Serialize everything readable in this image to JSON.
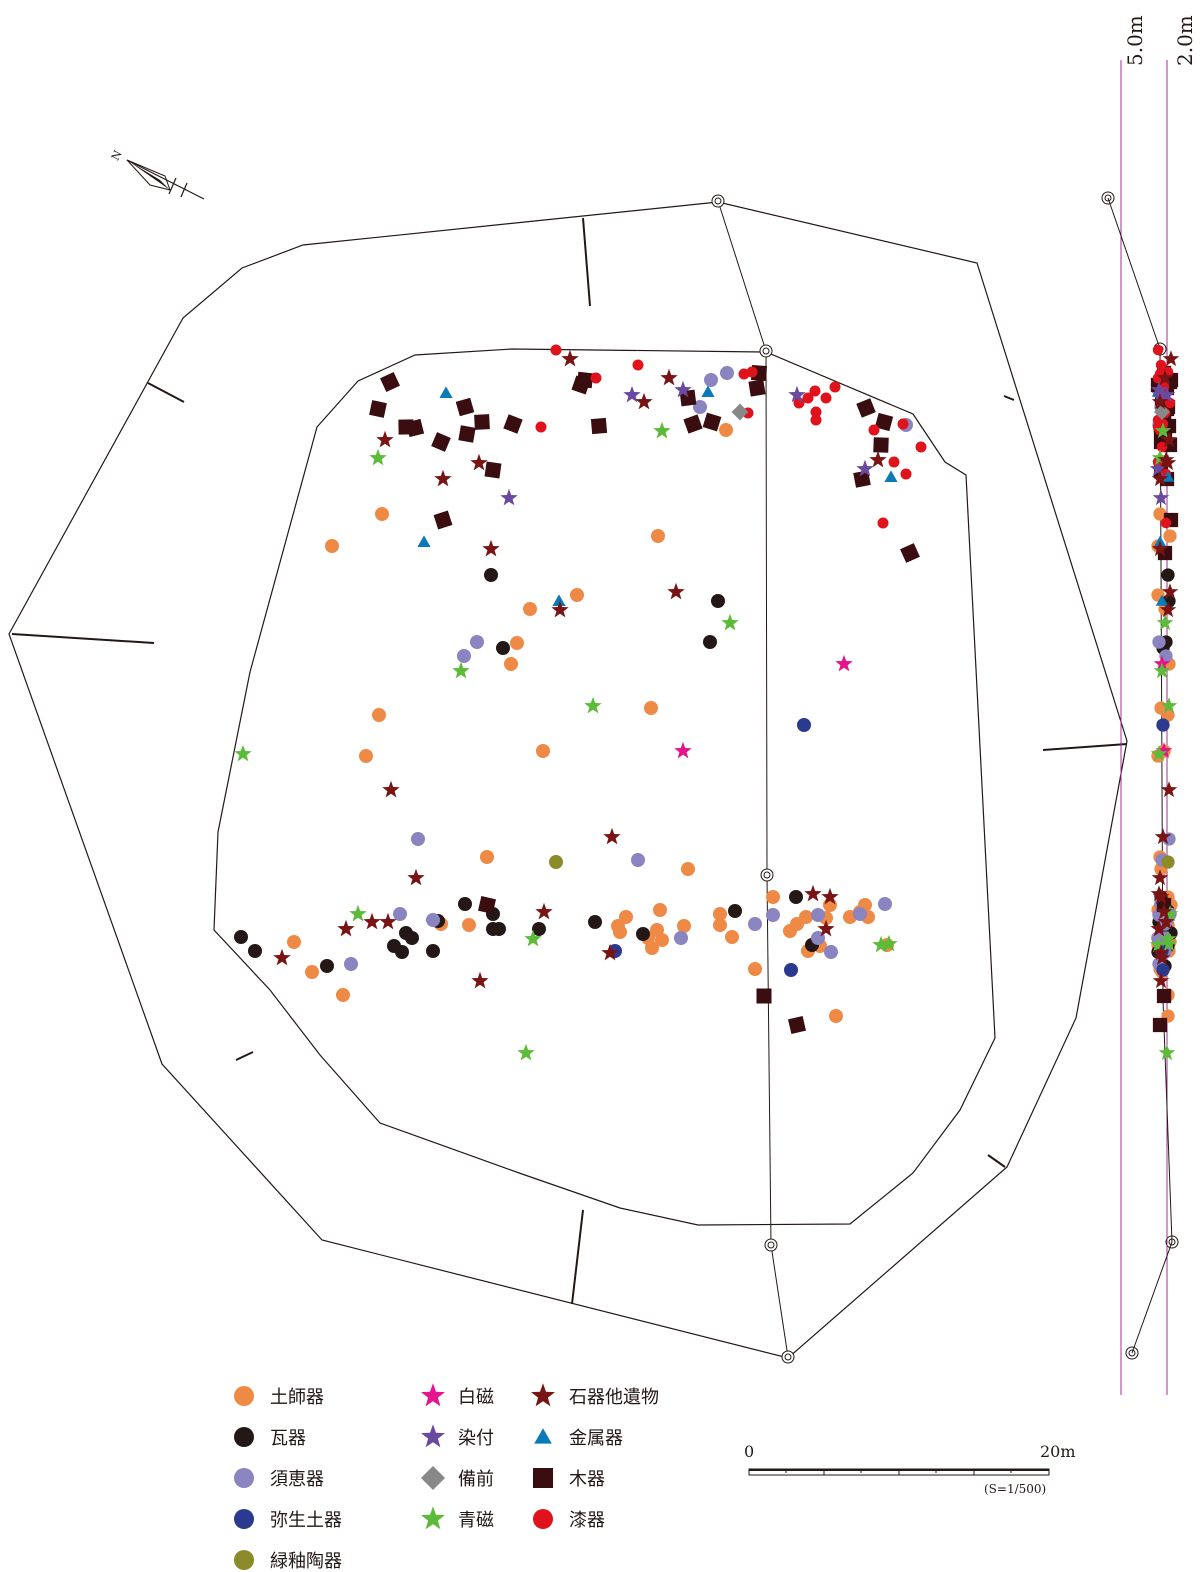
{
  "chart_data": {
    "type": "scatter",
    "legend": [
      {
        "key": "haji",
        "label": "土師器",
        "shape": "circle",
        "color": "#ee8a45"
      },
      {
        "key": "kawara",
        "label": "瓦器",
        "shape": "circle",
        "color": "#231815"
      },
      {
        "key": "sue",
        "label": "須恵器",
        "shape": "circle",
        "color": "#8a84c0"
      },
      {
        "key": "yayoi",
        "label": "弥生土器",
        "shape": "circle",
        "color": "#2b3a8f"
      },
      {
        "key": "ryokuyu",
        "label": "緑釉陶器",
        "shape": "circle",
        "color": "#8b8b2a"
      },
      {
        "key": "hakuji",
        "label": "白磁",
        "shape": "star",
        "color": "#e4148c"
      },
      {
        "key": "sometsuke",
        "label": "染付",
        "shape": "star",
        "color": "#6a4a9f"
      },
      {
        "key": "bizen",
        "label": "備前",
        "shape": "diamond",
        "color": "#888888"
      },
      {
        "key": "seiji",
        "label": "青磁",
        "shape": "star",
        "color": "#5dbb3a"
      },
      {
        "key": "sekki",
        "label": "石器他遺物",
        "shape": "star",
        "color": "#7a1414"
      },
      {
        "key": "kinzoku",
        "label": "金属器",
        "shape": "triangle",
        "color": "#0a7ab8"
      },
      {
        "key": "mokki",
        "label": "木器",
        "shape": "square",
        "color": "#3a0e10"
      },
      {
        "key": "shikki",
        "label": "漆器",
        "shape": "circle",
        "color": "#e0121c"
      }
    ],
    "scale": {
      "start_label": "0",
      "end_label": "20m",
      "ratio_label": "(S=1/500)"
    },
    "section_labels": [
      "5.0m",
      "2.0m"
    ],
    "north_label": "N",
    "points": {
      "haji": [
        [
          332,
          546
        ],
        [
          382,
          514
        ],
        [
          658,
          536
        ],
        [
          577,
          595
        ],
        [
          530,
          609
        ],
        [
          517,
          643
        ],
        [
          511,
          664
        ],
        [
          379,
          715
        ],
        [
          366,
          756
        ],
        [
          543,
          751
        ],
        [
          651,
          708
        ],
        [
          487,
          857
        ],
        [
          688,
          869
        ],
        [
          294,
          942
        ],
        [
          312,
          972
        ],
        [
          343,
          995
        ],
        [
          441,
          924
        ],
        [
          469,
          925
        ],
        [
          618,
          926
        ],
        [
          626,
          917
        ],
        [
          620,
          932
        ],
        [
          648,
          938
        ],
        [
          652,
          948
        ],
        [
          657,
          930
        ],
        [
          662,
          940
        ],
        [
          660,
          910
        ],
        [
          684,
          926
        ],
        [
          720,
          914
        ],
        [
          720,
          925
        ],
        [
          732,
          937
        ],
        [
          773,
          897
        ],
        [
          790,
          931
        ],
        [
          797,
          924
        ],
        [
          808,
          951
        ],
        [
          806,
          917
        ],
        [
          820,
          946
        ],
        [
          826,
          918
        ],
        [
          830,
          905
        ],
        [
          850,
          917
        ],
        [
          860,
          912
        ],
        [
          868,
          917
        ],
        [
          865,
          905
        ],
        [
          887,
          945
        ],
        [
          755,
          969
        ],
        [
          836,
          1016
        ],
        [
          726,
          430
        ]
      ],
      "kawara": [
        [
          241,
          937
        ],
        [
          255,
          951
        ],
        [
          491,
          575
        ],
        [
          503,
          648
        ],
        [
          718,
          601
        ],
        [
          710,
          642
        ],
        [
          327,
          966
        ],
        [
          394,
          946
        ],
        [
          402,
          952
        ],
        [
          406,
          933
        ],
        [
          412,
          938
        ],
        [
          433,
          951
        ],
        [
          438,
          921
        ],
        [
          465,
          904
        ],
        [
          493,
          914
        ],
        [
          493,
          929
        ],
        [
          499,
          929
        ],
        [
          539,
          929
        ],
        [
          595,
          922
        ],
        [
          643,
          934
        ],
        [
          735,
          911
        ],
        [
          796,
          897
        ],
        [
          812,
          945
        ]
      ],
      "sue": [
        [
          464,
          656
        ],
        [
          477,
          642
        ],
        [
          418,
          839
        ],
        [
          638,
          860
        ],
        [
          351,
          964
        ],
        [
          400,
          914
        ],
        [
          433,
          920
        ],
        [
          681,
          938
        ],
        [
          755,
          924
        ],
        [
          773,
          915
        ],
        [
          818,
          915
        ],
        [
          818,
          938
        ],
        [
          831,
          952
        ],
        [
          860,
          914
        ],
        [
          885,
          904
        ],
        [
          711,
          380
        ],
        [
          727,
          373
        ],
        [
          700,
          407
        ],
        [
          906,
          425
        ]
      ],
      "yayoi": [
        [
          804,
          725
        ],
        [
          615,
          951
        ],
        [
          791,
          970
        ]
      ],
      "ryokuyu": [
        [
          556,
          862
        ]
      ],
      "shikki": [
        [
          556,
          350
        ],
        [
          596,
          378
        ],
        [
          638,
          365
        ],
        [
          541,
          427
        ],
        [
          744,
          374
        ],
        [
          752,
          372
        ],
        [
          748,
          413
        ],
        [
          799,
          403
        ],
        [
          808,
          398
        ],
        [
          815,
          391
        ],
        [
          826,
          398
        ],
        [
          835,
          387
        ],
        [
          816,
          412
        ],
        [
          816,
          420
        ],
        [
          903,
          424
        ],
        [
          921,
          447
        ],
        [
          874,
          430
        ],
        [
          894,
          462
        ],
        [
          906,
          474
        ],
        [
          883,
          523
        ]
      ],
      "hakuji": [
        [
          844,
          664
        ],
        [
          683,
          751
        ]
      ],
      "sometsuke": [
        [
          509,
          498
        ],
        [
          632,
          395
        ],
        [
          683,
          390
        ],
        [
          797,
          395
        ],
        [
          865,
          469
        ]
      ],
      "seiji": [
        [
          378,
          458
        ],
        [
          662,
          431
        ],
        [
          461,
          671
        ],
        [
          593,
          706
        ],
        [
          730,
          623
        ],
        [
          243,
          754
        ],
        [
          358,
          914
        ],
        [
          533,
          939
        ],
        [
          881,
          945
        ],
        [
          889,
          944
        ],
        [
          526,
          1053
        ]
      ],
      "sekki": [
        [
          570,
          359
        ],
        [
          669,
          378
        ],
        [
          644,
          402
        ],
        [
          385,
          440
        ],
        [
          479,
          463
        ],
        [
          443,
          479
        ],
        [
          491,
          549
        ],
        [
          676,
          592
        ],
        [
          560,
          610
        ],
        [
          391,
          790
        ],
        [
          416,
          878
        ],
        [
          612,
          837
        ],
        [
          544,
          912
        ],
        [
          346,
          929
        ],
        [
          372,
          922
        ],
        [
          388,
          922
        ],
        [
          282,
          958
        ],
        [
          610,
          953
        ],
        [
          480,
          981
        ],
        [
          813,
          894
        ],
        [
          830,
          897
        ],
        [
          826,
          929
        ],
        [
          878,
          460
        ]
      ],
      "kinzoku": [
        [
          446,
          393
        ],
        [
          708,
          392
        ],
        [
          891,
          477
        ],
        [
          424,
          542
        ],
        [
          559,
          601
        ]
      ],
      "mokki": [
        [
          390,
          382
        ],
        [
          378,
          409
        ],
        [
          406,
          427
        ],
        [
          415,
          428
        ],
        [
          441,
          442
        ],
        [
          467,
          434
        ],
        [
          482,
          422
        ],
        [
          465,
          407
        ],
        [
          513,
          424
        ],
        [
          493,
          470
        ],
        [
          599,
          426
        ],
        [
          443,
          520
        ],
        [
          581,
          385
        ],
        [
          585,
          380
        ],
        [
          688,
          398
        ],
        [
          693,
          424
        ],
        [
          712,
          422
        ],
        [
          759,
          373
        ],
        [
          757,
          388
        ],
        [
          866,
          408
        ],
        [
          884,
          422
        ],
        [
          881,
          445
        ],
        [
          862,
          479
        ],
        [
          910,
          553
        ],
        [
          487,
          905
        ],
        [
          764,
          996
        ],
        [
          797,
          1025
        ]
      ],
      "bizen": [
        [
          740,
          412
        ]
      ]
    }
  }
}
